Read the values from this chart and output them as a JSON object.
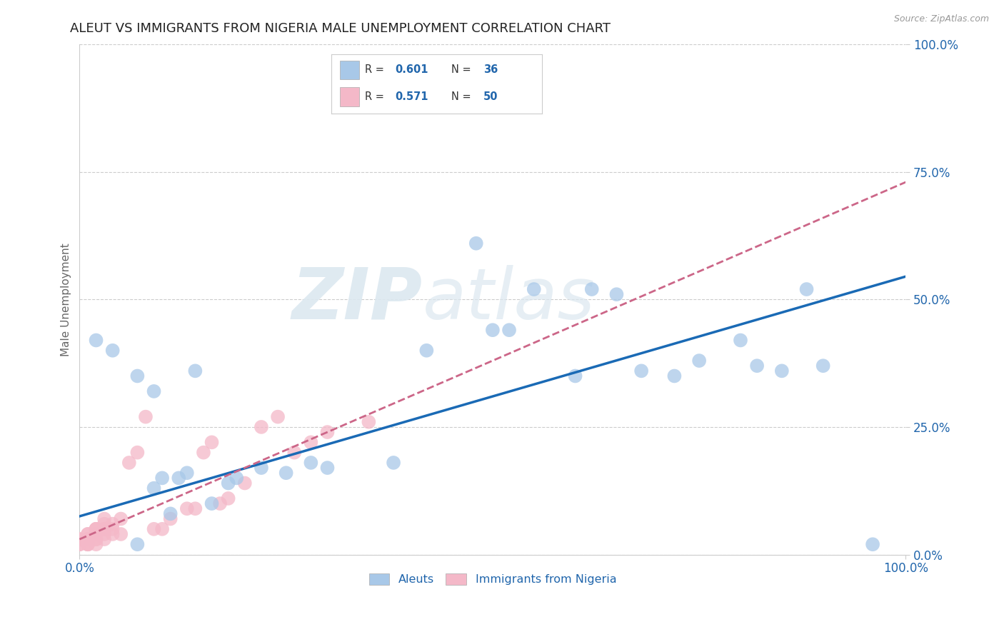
{
  "title": "ALEUT VS IMMIGRANTS FROM NIGERIA MALE UNEMPLOYMENT CORRELATION CHART",
  "source": "Source: ZipAtlas.com",
  "ylabel": "Male Unemployment",
  "y_tick_labels": [
    "0.0%",
    "25.0%",
    "50.0%",
    "75.0%",
    "100.0%"
  ],
  "y_tick_positions": [
    0.0,
    0.25,
    0.5,
    0.75,
    1.0
  ],
  "xlim": [
    0.0,
    1.0
  ],
  "ylim": [
    0.0,
    1.0
  ],
  "blue_color": "#a8c8e8",
  "pink_color": "#f4b8c8",
  "blue_line_color": "#1a6ab5",
  "pink_line_color": "#cc6688",
  "title_color": "#222222",
  "axis_label_color": "#2166ac",
  "background_color": "#ffffff",
  "aleuts_x": [
    0.02,
    0.04,
    0.07,
    0.07,
    0.09,
    0.09,
    0.1,
    0.11,
    0.12,
    0.13,
    0.14,
    0.16,
    0.18,
    0.19,
    0.22,
    0.25,
    0.28,
    0.3,
    0.38,
    0.42,
    0.48,
    0.5,
    0.52,
    0.55,
    0.6,
    0.62,
    0.65,
    0.68,
    0.72,
    0.75,
    0.8,
    0.82,
    0.85,
    0.88,
    0.9,
    0.96
  ],
  "aleuts_y": [
    0.42,
    0.4,
    0.35,
    0.02,
    0.32,
    0.13,
    0.15,
    0.08,
    0.15,
    0.16,
    0.36,
    0.1,
    0.14,
    0.15,
    0.17,
    0.16,
    0.18,
    0.17,
    0.18,
    0.4,
    0.61,
    0.44,
    0.44,
    0.52,
    0.35,
    0.52,
    0.51,
    0.36,
    0.35,
    0.38,
    0.42,
    0.37,
    0.36,
    0.52,
    0.37,
    0.02
  ],
  "nigeria_x": [
    0.0,
    0.0,
    0.0,
    0.0,
    0.01,
    0.01,
    0.01,
    0.01,
    0.01,
    0.01,
    0.01,
    0.01,
    0.02,
    0.02,
    0.02,
    0.02,
    0.02,
    0.02,
    0.02,
    0.02,
    0.03,
    0.03,
    0.03,
    0.03,
    0.03,
    0.03,
    0.04,
    0.04,
    0.04,
    0.05,
    0.05,
    0.06,
    0.07,
    0.08,
    0.09,
    0.1,
    0.11,
    0.13,
    0.14,
    0.15,
    0.16,
    0.17,
    0.18,
    0.2,
    0.22,
    0.24,
    0.26,
    0.28,
    0.3,
    0.35
  ],
  "nigeria_y": [
    0.03,
    0.02,
    0.03,
    0.02,
    0.04,
    0.03,
    0.02,
    0.03,
    0.04,
    0.02,
    0.03,
    0.02,
    0.05,
    0.04,
    0.05,
    0.03,
    0.04,
    0.02,
    0.05,
    0.03,
    0.06,
    0.05,
    0.04,
    0.07,
    0.03,
    0.05,
    0.05,
    0.04,
    0.06,
    0.07,
    0.04,
    0.18,
    0.2,
    0.27,
    0.05,
    0.05,
    0.07,
    0.09,
    0.09,
    0.2,
    0.22,
    0.1,
    0.11,
    0.14,
    0.25,
    0.27,
    0.2,
    0.22,
    0.24,
    0.26
  ],
  "aleut_trend_x": [
    0.0,
    1.0
  ],
  "aleut_trend_y": [
    0.075,
    0.545
  ],
  "nigeria_trend_x": [
    0.0,
    1.0
  ],
  "nigeria_trend_y": [
    0.03,
    0.73
  ],
  "watermark_zip": "ZIP",
  "watermark_atlas": "atlas",
  "title_fontsize": 13,
  "axis_label_fontsize": 11,
  "tick_fontsize": 12,
  "source_fontsize": 9
}
